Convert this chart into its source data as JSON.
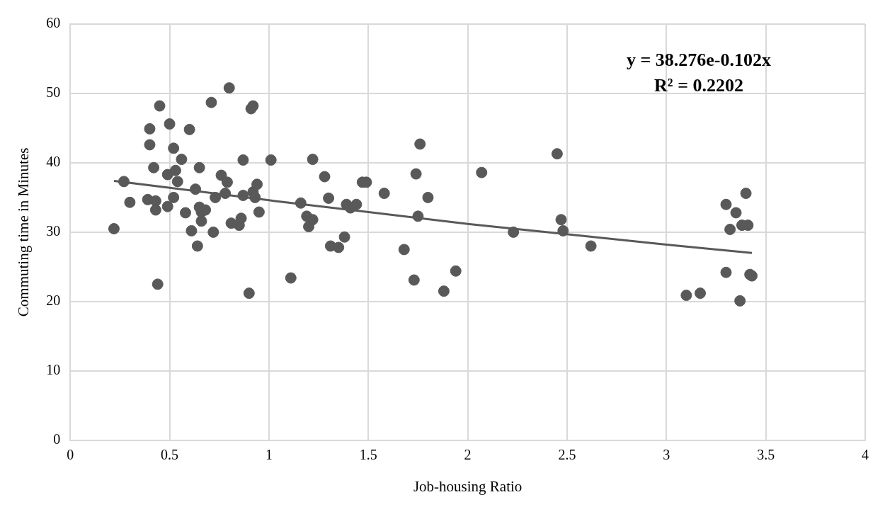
{
  "chart_data": {
    "type": "scatter",
    "xlabel": "Job-housing Ratio",
    "ylabel": "Commuting time in Minutes",
    "xlim": [
      0,
      4
    ],
    "xticks": [
      0,
      0.5,
      1,
      1.5,
      2,
      2.5,
      3,
      3.5,
      4
    ],
    "ylim": [
      0,
      60
    ],
    "yticks": [
      0,
      10,
      20,
      30,
      40,
      50,
      60
    ],
    "grid": true,
    "legend": false,
    "annotations": [
      "y = 38.276e-0.102x",
      "R² = 0.2202"
    ],
    "series": [
      {
        "marker": "circle",
        "color": "#595959",
        "x": [
          0.22,
          0.27,
          0.3,
          0.39,
          0.4,
          0.4,
          0.42,
          0.43,
          0.43,
          0.44,
          0.45,
          0.49,
          0.49,
          0.5,
          0.52,
          0.52,
          0.53,
          0.54,
          0.56,
          0.58,
          0.6,
          0.61,
          0.63,
          0.64,
          0.65,
          0.65,
          0.66,
          0.66,
          0.68,
          0.71,
          0.72,
          0.73,
          0.76,
          0.78,
          0.79,
          0.8,
          0.81,
          0.85,
          0.86,
          0.87,
          0.87,
          0.9,
          0.91,
          0.92,
          0.92,
          0.93,
          0.94,
          0.95,
          1.01,
          1.11,
          1.16,
          1.19,
          1.2,
          1.22,
          1.22,
          1.28,
          1.3,
          1.31,
          1.35,
          1.38,
          1.39,
          1.41,
          1.44,
          1.47,
          1.49,
          1.58,
          1.68,
          1.73,
          1.74,
          1.75,
          1.76,
          1.8,
          1.88,
          1.94,
          2.07,
          2.23,
          2.45,
          2.47,
          2.48,
          2.62,
          3.1,
          3.17,
          3.3,
          3.3,
          3.32,
          3.35,
          3.37,
          3.38,
          3.4,
          3.41,
          3.42,
          3.43
        ],
        "values": [
          30.5,
          37.3,
          34.3,
          34.7,
          44.9,
          42.6,
          39.3,
          34.5,
          33.2,
          22.5,
          48.2,
          38.3,
          33.7,
          45.6,
          42.1,
          35.0,
          38.9,
          37.3,
          40.5,
          32.8,
          44.8,
          30.2,
          36.2,
          28.0,
          39.3,
          33.6,
          31.6,
          32.9,
          33.2,
          48.7,
          30.0,
          35.0,
          38.2,
          35.6,
          37.2,
          50.8,
          31.3,
          31.0,
          32.0,
          40.4,
          35.3,
          21.2,
          47.8,
          48.2,
          35.8,
          35.0,
          36.9,
          32.9,
          40.4,
          23.4,
          34.2,
          32.3,
          30.8,
          40.5,
          31.8,
          38.0,
          34.9,
          28.0,
          27.8,
          29.3,
          34.0,
          33.5,
          34.0,
          37.2,
          37.2,
          35.6,
          27.5,
          23.1,
          38.4,
          32.3,
          42.7,
          35.0,
          21.5,
          24.4,
          38.6,
          30.0,
          41.3,
          31.8,
          30.2,
          28.0,
          20.9,
          21.2,
          34.0,
          24.2,
          30.4,
          32.8,
          20.1,
          31.0,
          35.6,
          31.0,
          23.9,
          23.7
        ]
      },
      {
        "type": "line",
        "marker": "none",
        "color": "#595959",
        "x": [
          0.22,
          1,
          2,
          3,
          3.43
        ],
        "values": [
          37.4,
          34.6,
          31.2,
          28.2,
          27.0
        ]
      }
    ]
  }
}
